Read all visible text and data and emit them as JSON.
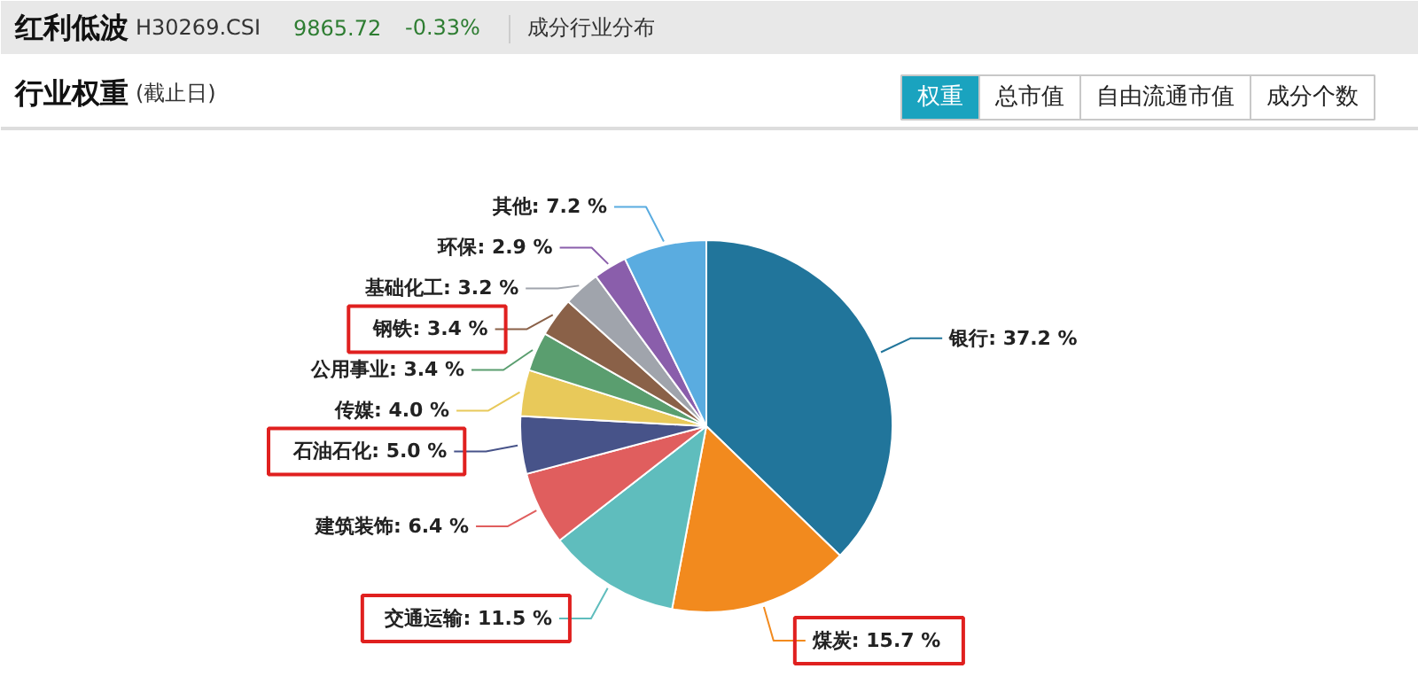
{
  "chart_data": {
    "type": "pie",
    "title": "行业权重",
    "subtitle": "(截止日)",
    "annotations": [
      "红利低波",
      "H30269.CSI",
      "9865.72",
      "-0.33%",
      "成分行业分布",
      "权重",
      "总市值",
      "自由流通市值",
      "成分个数"
    ],
    "categories": [
      "银行",
      "煤炭",
      "交通运输",
      "建筑装饰",
      "石油石化",
      "传媒",
      "公用事业",
      "钢铁",
      "基础化工",
      "环保",
      "其他"
    ],
    "values": [
      37.2,
      15.7,
      11.5,
      6.4,
      5.0,
      4.0,
      3.4,
      3.4,
      3.2,
      2.9,
      7.2
    ],
    "value_labels": [
      "37.2 %",
      "15.7 %",
      "11.5 %",
      "6.4 %",
      "5.0 %",
      "4.0 %",
      "3.4 %",
      "3.4 %",
      "3.2 %",
      "2.9 %",
      "7.2 %"
    ],
    "colors": [
      "#21759b",
      "#f28a1e",
      "#5fbdbd",
      "#e05e5e",
      "#475389",
      "#e8c95a",
      "#5a9e6f",
      "#8a6148",
      "#a0a4ac",
      "#8a5eab",
      "#5aace0"
    ]
  }
}
